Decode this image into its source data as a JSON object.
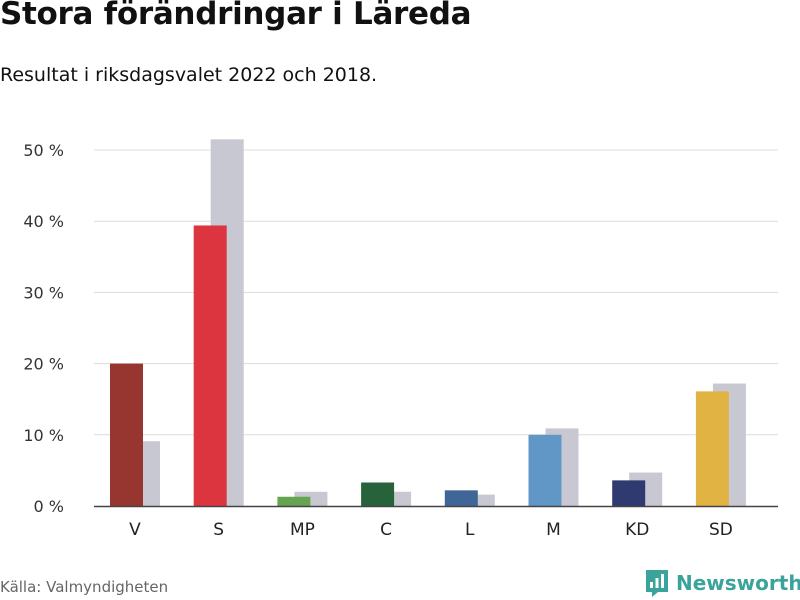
{
  "title": "Stora förändringar i Läreda",
  "subtitle": "Resultat i riksdagsvalet 2022 och 2018.",
  "source": "Källa: Valmyndigheten",
  "brand": {
    "name": "Newsworthy",
    "icon": "newsworthy-logo-icon",
    "color": "#3aa39a"
  },
  "chart_data": {
    "type": "bar",
    "categories": [
      "V",
      "S",
      "MP",
      "C",
      "L",
      "M",
      "KD",
      "SD"
    ],
    "series": [
      {
        "values": [
          20.0,
          39.4,
          1.3,
          3.3,
          2.2,
          10.0,
          3.6,
          16.1
        ]
      },
      {
        "values": [
          9.1,
          51.5,
          2.0,
          2.0,
          1.6,
          10.9,
          4.7,
          17.2
        ]
      }
    ],
    "colors_2022": [
      "#973631",
      "#dc3540",
      "#67a451",
      "#27633a",
      "#3f6696",
      "#6197c7",
      "#2e3a70",
      "#e0b342"
    ],
    "color_2018": "#c8c8d3",
    "yticks": [
      0,
      10,
      20,
      30,
      40,
      50
    ],
    "ytick_labels": [
      "0 %",
      "10 %",
      "20 %",
      "30 %",
      "40 %",
      "50 %"
    ],
    "ylim": [
      0,
      52
    ],
    "xlabel": "",
    "ylabel": "",
    "grid": true,
    "legend": "none"
  }
}
